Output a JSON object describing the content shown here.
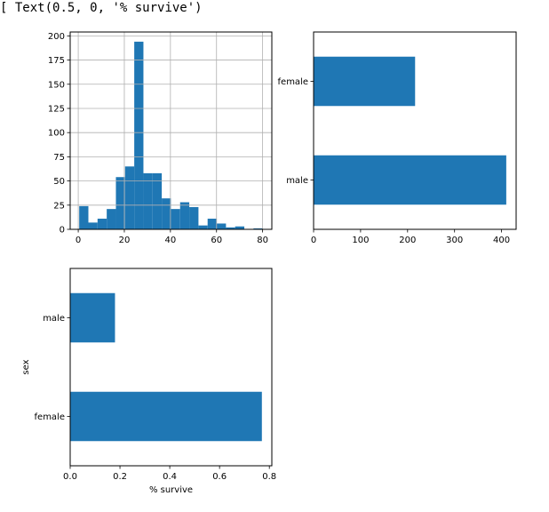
{
  "output": {
    "prompt_marker": "[",
    "text": "Text(0.5, 0, '% survive')"
  },
  "colors": {
    "bar": "#1f77b4",
    "grid": "#b0b0b0",
    "axis": "#000000"
  },
  "chart_data": [
    {
      "type": "bar",
      "orientation": "vertical",
      "title": "",
      "xlabel": "",
      "ylabel": "",
      "grid": true,
      "bin_edges": [
        0.42,
        4.4,
        8.38,
        12.36,
        16.34,
        20.32,
        24.3,
        28.28,
        32.26,
        36.24,
        40.22,
        44.2,
        48.18,
        52.16,
        56.14,
        60.12,
        64.1,
        68.08,
        72.06,
        76.04,
        80.0
      ],
      "values": [
        24,
        7,
        11,
        21,
        54,
        65,
        194,
        58,
        58,
        32,
        21,
        28,
        23,
        4,
        11,
        6,
        2,
        3,
        0,
        1
      ],
      "xlim": [
        -3.5,
        84
      ],
      "ylim": [
        0,
        204
      ],
      "x_ticks": [
        "0",
        "20",
        "40",
        "60",
        "80"
      ],
      "y_ticks": [
        "0",
        "25",
        "50",
        "75",
        "100",
        "125",
        "150",
        "175",
        "200"
      ]
    },
    {
      "type": "bar",
      "orientation": "horizontal",
      "title": "",
      "xlabel": "",
      "ylabel": "",
      "grid": false,
      "categories": [
        "male",
        "female"
      ],
      "values": [
        410,
        216
      ],
      "xlim": [
        0,
        431
      ],
      "x_ticks": [
        "0",
        "100",
        "200",
        "300",
        "400"
      ]
    },
    {
      "type": "bar",
      "orientation": "horizontal",
      "title": "",
      "xlabel": "% survive",
      "ylabel": "sex",
      "grid": false,
      "categories": [
        "female",
        "male"
      ],
      "values": [
        0.77,
        0.18
      ],
      "xlim": [
        0,
        0.81
      ],
      "x_ticks": [
        "0.0",
        "0.2",
        "0.4",
        "0.6",
        "0.8"
      ]
    }
  ]
}
